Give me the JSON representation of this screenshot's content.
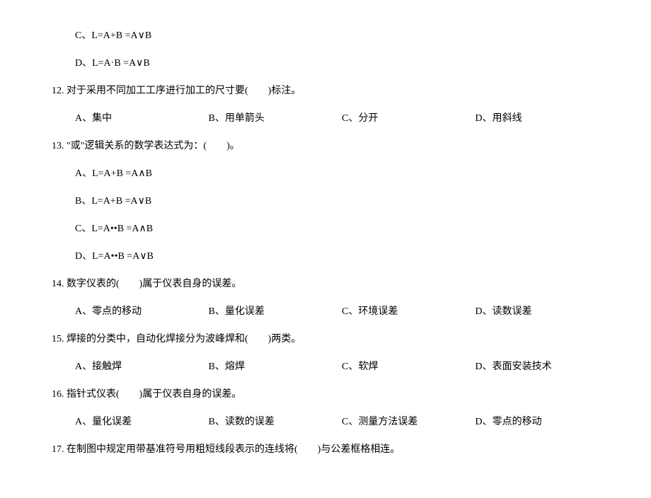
{
  "doc": {
    "font_size": 14,
    "text_color": "#000000",
    "background_color": "#ffffff",
    "font_family": "SimSun"
  },
  "q11": {
    "optC": "C、L=A+B =A∨B",
    "optD": "D、L=A·B =A∨B"
  },
  "q12": {
    "text": "12. 对于采用不同加工工序进行加工的尺寸要(　　)标注。",
    "A": "A、集中",
    "B": "B、用单箭头",
    "C": "C、分开",
    "D": "D、用斜线"
  },
  "q13": {
    "text": "13. \"或\"逻辑关系的数学表达式为：(　　)。",
    "A": "A、L=A+B =A∧B",
    "B": "B、L=A+B =A∨B",
    "C": "C、L=A••B =A∧B",
    "D": "D、L=A••B =A∨B"
  },
  "q14": {
    "text": "14. 数字仪表的(　　)属于仪表自身的误差。",
    "A": "A、零点的移动",
    "B": "B、量化误差",
    "C": "C、环境误差",
    "D": "D、读数误差"
  },
  "q15": {
    "text": "15. 焊接的分类中，自动化焊接分为波峰焊和(　　)两类。",
    "A": "A、接触焊",
    "B": "B、熔焊",
    "C": "C、软焊",
    "D": "D、表面安装技术"
  },
  "q16": {
    "text": "16. 指针式仪表(　　)属于仪表自身的误差。",
    "A": "A、量化误差",
    "B": "B、读数的误差",
    "C": "C、测量方法误差",
    "D": "D、零点的移动"
  },
  "q17": {
    "text": "17. 在制图中规定用带基准符号用粗短线段表示的连线将(　　)与公差框格相连。"
  }
}
